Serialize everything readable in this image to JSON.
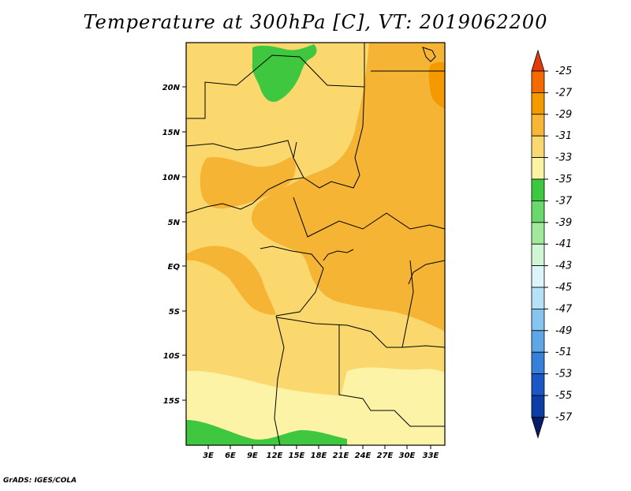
{
  "map": {
    "title": "Temperature at 300hPa [C], VT: 2019062200",
    "credit": "GrADS: IGES/COLA",
    "lat_labels": [
      "20N",
      "15N",
      "10N",
      "5N",
      "EQ",
      "5S",
      "10S",
      "15S"
    ],
    "lon_labels": [
      "3E",
      "6E",
      "9E",
      "12E",
      "15E",
      "18E",
      "21E",
      "24E",
      "27E",
      "30E",
      "33E"
    ],
    "colorbar": {
      "labels": [
        "-25",
        "-27",
        "-29",
        "-31",
        "-33",
        "-35",
        "-37",
        "-39",
        "-41",
        "-43",
        "-45",
        "-47",
        "-49",
        "-51",
        "-53",
        "-55",
        "-57"
      ],
      "colors": [
        "#e23c0a",
        "#f26a00",
        "#f49a00",
        "#f7b634",
        "#fad870",
        "#fbf3a4",
        "#3cc840",
        "#6ad86a",
        "#a2e89a",
        "#d0f6d6",
        "#ddf4fb",
        "#b6e1f7",
        "#88c4f0",
        "#5ea6e6",
        "#3680d9",
        "#1b58c5",
        "#0c3ea5",
        "#081c6a"
      ]
    },
    "legend_colors": {
      "band_29_31": "#f6b434",
      "band_31_33": "#fad86e",
      "band_33_35": "#fdf3a6",
      "band_35_37": "#3fc83f",
      "boundary": "#000000"
    }
  }
}
